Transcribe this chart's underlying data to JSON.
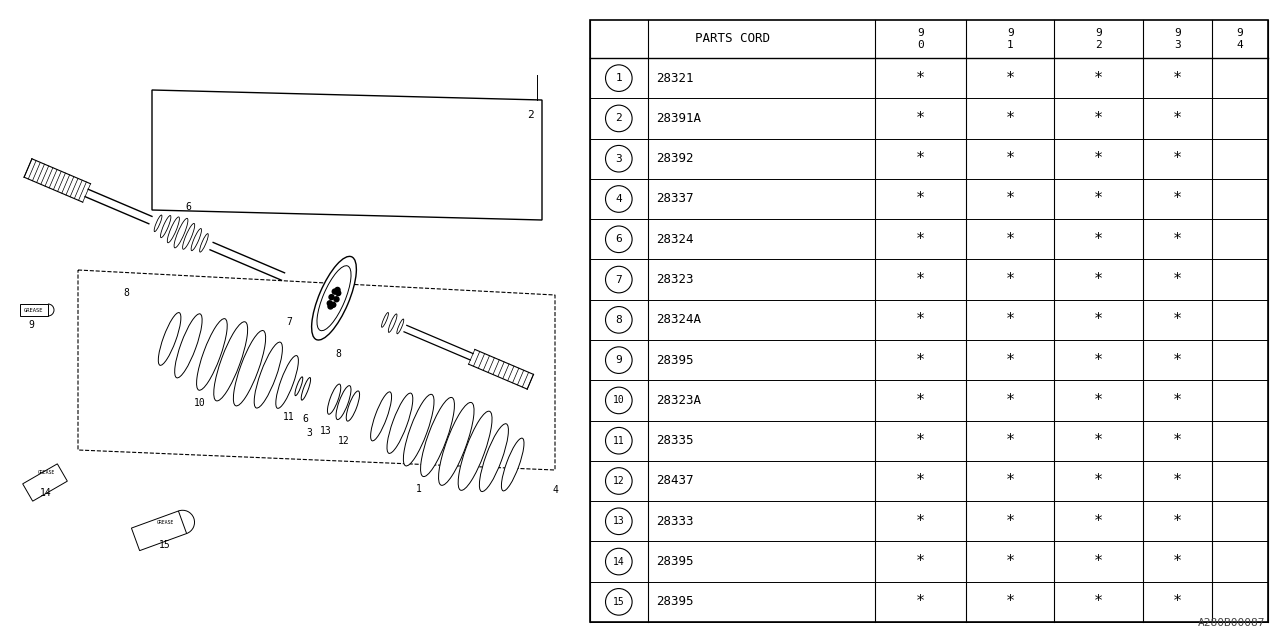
{
  "watermark": "A280B00087",
  "background_color": "#ffffff",
  "line_color": "#000000",
  "table": {
    "header_label": "PARTS CORD",
    "col_headers": [
      [
        "9",
        "0"
      ],
      [
        "9",
        "1"
      ],
      [
        "9",
        "2"
      ],
      [
        "9",
        "3"
      ],
      [
        "9",
        "4"
      ]
    ],
    "rows": [
      {
        "num": "1",
        "code": "28321",
        "marks": [
          true,
          true,
          true,
          true,
          false
        ]
      },
      {
        "num": "2",
        "code": "28391A",
        "marks": [
          true,
          true,
          true,
          true,
          false
        ]
      },
      {
        "num": "3",
        "code": "28392",
        "marks": [
          true,
          true,
          true,
          true,
          false
        ]
      },
      {
        "num": "4",
        "code": "28337",
        "marks": [
          true,
          true,
          true,
          true,
          false
        ]
      },
      {
        "num": "6",
        "code": "28324",
        "marks": [
          true,
          true,
          true,
          true,
          false
        ]
      },
      {
        "num": "7",
        "code": "28323",
        "marks": [
          true,
          true,
          true,
          true,
          false
        ]
      },
      {
        "num": "8",
        "code": "28324A",
        "marks": [
          true,
          true,
          true,
          true,
          false
        ]
      },
      {
        "num": "9",
        "code": "28395",
        "marks": [
          true,
          true,
          true,
          true,
          false
        ]
      },
      {
        "num": "10",
        "code": "28323A",
        "marks": [
          true,
          true,
          true,
          true,
          false
        ]
      },
      {
        "num": "11",
        "code": "28335",
        "marks": [
          true,
          true,
          true,
          true,
          false
        ]
      },
      {
        "num": "12",
        "code": "28437",
        "marks": [
          true,
          true,
          true,
          true,
          false
        ]
      },
      {
        "num": "13",
        "code": "28333",
        "marks": [
          true,
          true,
          true,
          true,
          false
        ]
      },
      {
        "num": "14",
        "code": "28395",
        "marks": [
          true,
          true,
          true,
          true,
          false
        ]
      },
      {
        "num": "15",
        "code": "28395",
        "marks": [
          true,
          true,
          true,
          true,
          false
        ]
      }
    ]
  }
}
